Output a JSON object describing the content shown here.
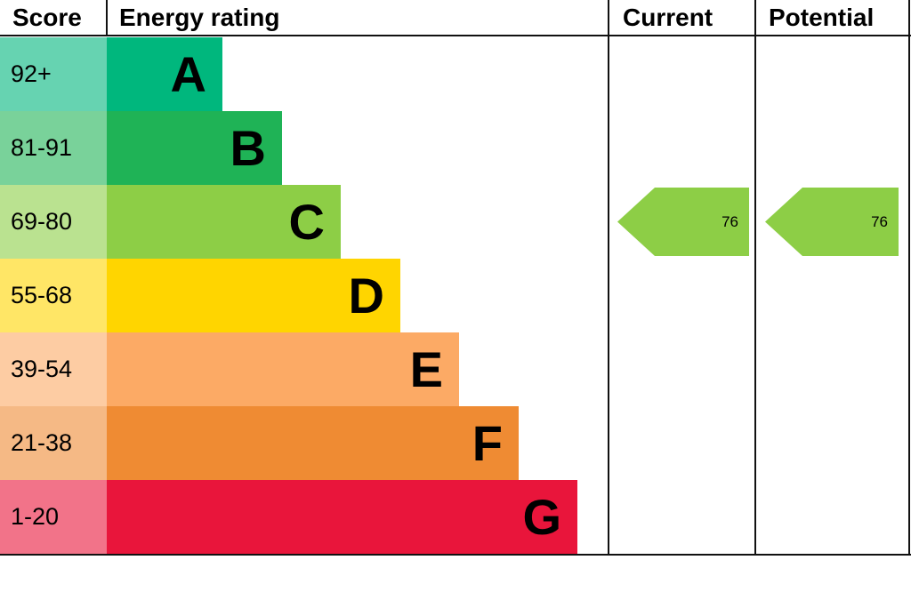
{
  "header": {
    "score": "Score",
    "rating": "Energy rating",
    "current": "Current",
    "potential": "Potential"
  },
  "chart_data": {
    "type": "bar",
    "title": "Energy rating",
    "categories": [
      "A",
      "B",
      "C",
      "D",
      "E",
      "F",
      "G"
    ],
    "score_ranges": [
      "92+",
      "81-91",
      "69-80",
      "55-68",
      "39-54",
      "21-38",
      "1-20"
    ],
    "bands": [
      {
        "letter": "A",
        "score": "92+",
        "min": 92,
        "color": "#00b77d",
        "tint": "#66d3b1"
      },
      {
        "letter": "B",
        "score": "81-91",
        "min": 81,
        "color": "#1fb356",
        "tint": "#79d29a"
      },
      {
        "letter": "C",
        "score": "69-80",
        "min": 69,
        "color": "#8dce46",
        "tint": "#bae290"
      },
      {
        "letter": "D",
        "score": "55-68",
        "min": 55,
        "color": "#ffd500",
        "tint": "#ffe666"
      },
      {
        "letter": "E",
        "score": "39-54",
        "min": 39,
        "color": "#fcaa65",
        "tint": "#fdcca3"
      },
      {
        "letter": "F",
        "score": "21-38",
        "min": 21,
        "color": "#ef8b33",
        "tint": "#f5b985"
      },
      {
        "letter": "G",
        "score": "1-20",
        "min": 1,
        "color": "#e9153b",
        "tint": "#f27389"
      }
    ],
    "current": {
      "value": 76,
      "band": "C"
    },
    "potential": {
      "value": 76,
      "band": "C"
    }
  }
}
